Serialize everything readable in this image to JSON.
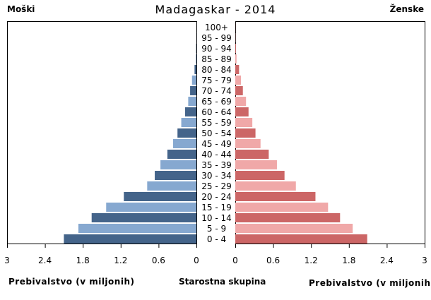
{
  "chart_data": {
    "type": "bar",
    "title": "Madagaskar",
    "year": "2014",
    "left_label": "Moški",
    "right_label": "Ženske",
    "xlabel_left": "Prebivalstvo  (v miljonih)",
    "xlabel_right": "Prebivalstvo (v miljonih)",
    "center_label": "Starostna skupina",
    "xlim": [
      0,
      3
    ],
    "ticks": [
      "0",
      "0.6",
      "1.2",
      "1.8",
      "2.4",
      "3"
    ],
    "tick_values": [
      0,
      0.6,
      1.2,
      1.8,
      2.4,
      3
    ],
    "categories": [
      "0 - 4",
      "5 - 9",
      "10 - 14",
      "15 - 19",
      "20 - 24",
      "25 - 29",
      "30 - 34",
      "35 - 39",
      "40 - 44",
      "45 - 49",
      "50 - 54",
      "55 - 59",
      "60 - 64",
      "65 - 69",
      "70 - 74",
      "75 - 79",
      "80 - 84",
      "85 - 89",
      "90 - 94",
      "95 - 99",
      "100+"
    ],
    "series": [
      {
        "name": "Moški",
        "values": [
          2.1,
          1.87,
          1.66,
          1.43,
          1.15,
          0.78,
          0.66,
          0.57,
          0.46,
          0.37,
          0.3,
          0.24,
          0.18,
          0.13,
          0.1,
          0.07,
          0.03,
          0.01,
          0.005,
          0.002,
          0.001
        ],
        "colors": [
          "#44648a",
          "#86a8d0"
        ]
      },
      {
        "name": "Ženske",
        "values": [
          2.09,
          1.86,
          1.66,
          1.47,
          1.27,
          0.96,
          0.78,
          0.66,
          0.53,
          0.4,
          0.32,
          0.27,
          0.21,
          0.17,
          0.12,
          0.09,
          0.06,
          0.02,
          0.01,
          0.003,
          0.001
        ],
        "colors": [
          "#cc6666",
          "#f0a8a8"
        ]
      }
    ]
  }
}
